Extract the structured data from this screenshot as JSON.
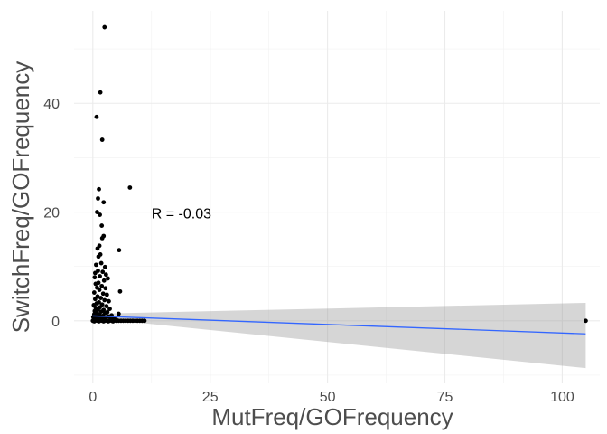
{
  "chart_data": {
    "type": "scatter",
    "title": "",
    "xlabel": "MutFreq/GOFrequency",
    "ylabel": "SwitchFreq/GOFrequency",
    "xlim": [
      -4,
      108
    ],
    "ylim": [
      -11.5,
      57
    ],
    "x_ticks": [
      0,
      25,
      50,
      75,
      100
    ],
    "y_ticks": [
      0,
      20,
      40
    ],
    "x_tick_labels": [
      "0",
      "25",
      "50",
      "75",
      "100"
    ],
    "y_tick_labels": [
      "0",
      "20",
      "40"
    ],
    "x_minor": [
      12.5,
      37.5,
      62.5,
      87.5
    ],
    "y_minor": [
      -10,
      10,
      30,
      50
    ],
    "grid": true,
    "annotation": {
      "text": "R = -0.03",
      "x": 12.5,
      "y": 19.8
    },
    "colors": {
      "points": "#000000",
      "fit": "#3366ff",
      "ribbon": "#999999",
      "grid": "#ebebeb"
    },
    "points": [
      {
        "x": 2.5,
        "y": 54
      },
      {
        "x": 1.6,
        "y": 42
      },
      {
        "x": 0.8,
        "y": 37.5
      },
      {
        "x": 2.0,
        "y": 33.3
      },
      {
        "x": 7.9,
        "y": 24.5
      },
      {
        "x": 1.3,
        "y": 24.2
      },
      {
        "x": 1.1,
        "y": 22.5
      },
      {
        "x": 2.3,
        "y": 21.8
      },
      {
        "x": 0.9,
        "y": 20.0
      },
      {
        "x": 1.5,
        "y": 19.5
      },
      {
        "x": 1.9,
        "y": 17.5
      },
      {
        "x": 2.3,
        "y": 15.6
      },
      {
        "x": 2.0,
        "y": 15.2
      },
      {
        "x": 1.4,
        "y": 13.8
      },
      {
        "x": 1.0,
        "y": 13.3
      },
      {
        "x": 5.6,
        "y": 13.0
      },
      {
        "x": 1.6,
        "y": 12.2
      },
      {
        "x": 1.2,
        "y": 11.8
      },
      {
        "x": 0.7,
        "y": 10.3
      },
      {
        "x": 1.8,
        "y": 10.6
      },
      {
        "x": 2.6,
        "y": 9.9
      },
      {
        "x": 1.1,
        "y": 9.2
      },
      {
        "x": 2.1,
        "y": 9.0
      },
      {
        "x": 0.5,
        "y": 8.8
      },
      {
        "x": 2.8,
        "y": 8.5
      },
      {
        "x": 1.5,
        "y": 8.2
      },
      {
        "x": 0.4,
        "y": 8.0
      },
      {
        "x": 3.2,
        "y": 7.8
      },
      {
        "x": 2.4,
        "y": 7.4
      },
      {
        "x": 1.2,
        "y": 7.0
      },
      {
        "x": 0.6,
        "y": 6.8
      },
      {
        "x": 1.9,
        "y": 6.4
      },
      {
        "x": 0.9,
        "y": 6.1
      },
      {
        "x": 2.7,
        "y": 6.0
      },
      {
        "x": 1.4,
        "y": 5.7
      },
      {
        "x": 5.8,
        "y": 5.4
      },
      {
        "x": 0.3,
        "y": 5.2
      },
      {
        "x": 2.2,
        "y": 5.0
      },
      {
        "x": 3.0,
        "y": 4.8
      },
      {
        "x": 1.0,
        "y": 4.5
      },
      {
        "x": 1.7,
        "y": 4.2
      },
      {
        "x": 0.5,
        "y": 4.0
      },
      {
        "x": 2.5,
        "y": 3.8
      },
      {
        "x": 3.4,
        "y": 3.6
      },
      {
        "x": 1.3,
        "y": 3.4
      },
      {
        "x": 0.8,
        "y": 3.2
      },
      {
        "x": 2.0,
        "y": 3.0
      },
      {
        "x": 0.2,
        "y": 2.9
      },
      {
        "x": 2.9,
        "y": 2.7
      },
      {
        "x": 1.5,
        "y": 2.5
      },
      {
        "x": 0.6,
        "y": 2.4
      },
      {
        "x": 3.6,
        "y": 2.2
      },
      {
        "x": 1.1,
        "y": 2.1
      },
      {
        "x": 2.3,
        "y": 2.0
      },
      {
        "x": 0.4,
        "y": 1.8
      },
      {
        "x": 1.8,
        "y": 1.7
      },
      {
        "x": 3.1,
        "y": 1.6
      },
      {
        "x": 0.9,
        "y": 1.5
      },
      {
        "x": 2.6,
        "y": 1.4
      },
      {
        "x": 5.5,
        "y": 1.3
      },
      {
        "x": 0.3,
        "y": 1.2
      },
      {
        "x": 1.4,
        "y": 1.1
      },
      {
        "x": 4.0,
        "y": 1.0
      },
      {
        "x": 2.1,
        "y": 0.9
      },
      {
        "x": 0.7,
        "y": 0.9
      },
      {
        "x": 1.0,
        "y": 0.8
      },
      {
        "x": 3.3,
        "y": 0.8
      },
      {
        "x": 0.1,
        "y": 0.7
      },
      {
        "x": 1.6,
        "y": 0.6
      },
      {
        "x": 2.8,
        "y": 0.6
      },
      {
        "x": 0.5,
        "y": 0.5
      },
      {
        "x": 4.5,
        "y": 0.5
      },
      {
        "x": 1.2,
        "y": 0.4
      },
      {
        "x": 2.2,
        "y": 0.4
      },
      {
        "x": 0.2,
        "y": 0.3
      },
      {
        "x": 3.8,
        "y": 0.3
      },
      {
        "x": 0.8,
        "y": 0.2
      },
      {
        "x": 1.9,
        "y": 0.2
      },
      {
        "x": 5.0,
        "y": 0.2
      },
      {
        "x": 2.6,
        "y": 0.1
      },
      {
        "x": 0.0,
        "y": 0.0
      },
      {
        "x": 0.5,
        "y": 0.0
      },
      {
        "x": 1.0,
        "y": 0.0
      },
      {
        "x": 1.5,
        "y": 0.0
      },
      {
        "x": 2.0,
        "y": 0.0
      },
      {
        "x": 2.5,
        "y": 0.0
      },
      {
        "x": 3.0,
        "y": 0.0
      },
      {
        "x": 3.5,
        "y": 0.0
      },
      {
        "x": 4.0,
        "y": 0.0
      },
      {
        "x": 4.5,
        "y": 0.0
      },
      {
        "x": 5.0,
        "y": 0.0
      },
      {
        "x": 5.5,
        "y": 0.0
      },
      {
        "x": 6.0,
        "y": 0.0
      },
      {
        "x": 6.5,
        "y": 0.0
      },
      {
        "x": 7.0,
        "y": 0.0
      },
      {
        "x": 7.5,
        "y": 0.0
      },
      {
        "x": 8.0,
        "y": 0.0
      },
      {
        "x": 8.5,
        "y": 0.0
      },
      {
        "x": 9.0,
        "y": 0.0
      },
      {
        "x": 9.5,
        "y": 0.0
      },
      {
        "x": 10.0,
        "y": 0.0
      },
      {
        "x": 10.5,
        "y": 0.0
      },
      {
        "x": 11.0,
        "y": 0.0
      },
      {
        "x": 0.3,
        "y": -0.1
      },
      {
        "x": 1.3,
        "y": -0.1
      },
      {
        "x": 2.3,
        "y": -0.1
      },
      {
        "x": 3.3,
        "y": -0.1
      },
      {
        "x": 4.3,
        "y": -0.1
      },
      {
        "x": 105,
        "y": 0.0
      }
    ],
    "fit": {
      "type": "lm",
      "x": [
        0,
        105
      ],
      "y": [
        0.9,
        -2.4
      ],
      "ribbon_lower": [
        0.5,
        -8.7
      ],
      "ribbon_upper": [
        1.3,
        3.3
      ]
    }
  }
}
